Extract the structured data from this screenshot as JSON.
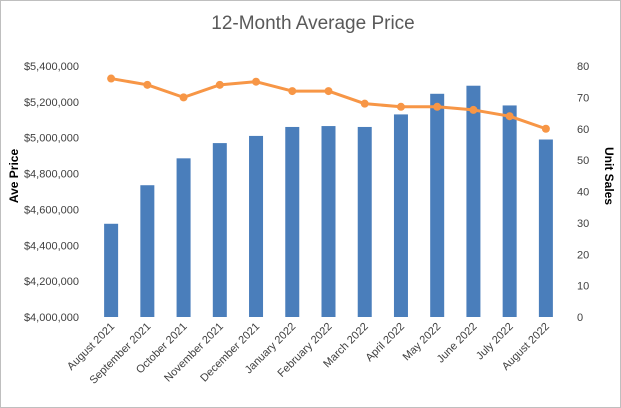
{
  "chart_data": {
    "type": "bar",
    "title": "12-Month Average Price",
    "categories": [
      "August 2021",
      "September 2021",
      "October 2021",
      "November 2021",
      "December 2021",
      "January 2022",
      "February 2022",
      "March 2022",
      "April 2022",
      "May 2022",
      "June 2022",
      "July 2022",
      "August 2022"
    ],
    "series": [
      {
        "type": "bar",
        "axis": "left",
        "color": "#4a7ebb",
        "values": [
          4520000,
          4735000,
          4885000,
          4970000,
          5010000,
          5060000,
          5065000,
          5060000,
          5130000,
          5245000,
          5290000,
          5180000,
          4990000
        ]
      },
      {
        "type": "line",
        "axis": "right",
        "color": "#f79646",
        "values": [
          76,
          74,
          70,
          74,
          75,
          72,
          72,
          68,
          67,
          67,
          66,
          64,
          60
        ]
      }
    ],
    "ylabel": "Ave Price",
    "ylabel_right": "Unit Sales",
    "ylim": [
      4000000,
      5400000
    ],
    "ylim_right": [
      0,
      80
    ],
    "yticks": [
      "$4,000,000",
      "$4,200,000",
      "$4,400,000",
      "$4,600,000",
      "$4,800,000",
      "$5,000,000",
      "$5,200,000",
      "$5,400,000"
    ],
    "yticks_right": [
      "0",
      "10",
      "20",
      "30",
      "40",
      "50",
      "60",
      "70",
      "80"
    ],
    "grid": false,
    "legend": "none"
  }
}
